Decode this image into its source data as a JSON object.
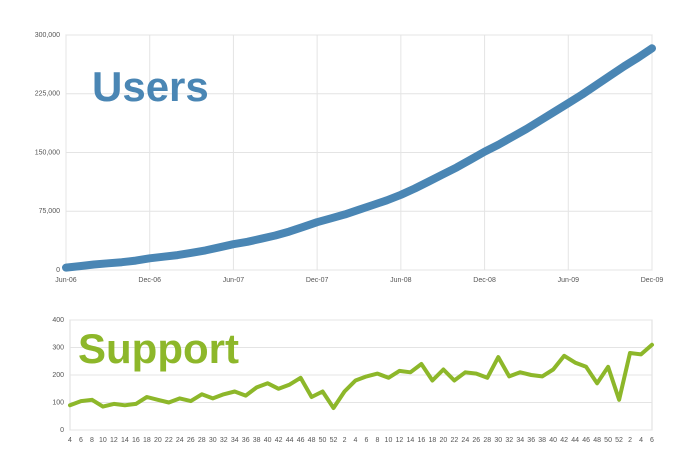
{
  "chart_data": [
    {
      "type": "line",
      "title": "Users",
      "color": "#4a86b4",
      "grid": true,
      "categories": [
        "Jun-06",
        null,
        null,
        null,
        null,
        null,
        "Dec-06",
        null,
        null,
        null,
        null,
        null,
        "Jun-07",
        null,
        null,
        null,
        null,
        null,
        "Dec-07",
        null,
        null,
        null,
        null,
        null,
        "Jun-08",
        null,
        null,
        null,
        null,
        null,
        "Dec-08",
        null,
        null,
        null,
        null,
        null,
        "Jun-09",
        null,
        null,
        null,
        null,
        null,
        "Dec-09"
      ],
      "values": [
        3000,
        5000,
        7000,
        8500,
        10000,
        12000,
        15000,
        17000,
        19000,
        22000,
        25000,
        29000,
        33000,
        36000,
        40000,
        44000,
        49000,
        55000,
        61000,
        66000,
        71000,
        77000,
        83000,
        89000,
        96000,
        104000,
        113000,
        122000,
        131000,
        141000,
        151000,
        160000,
        170000,
        180000,
        191000,
        202000,
        213000,
        224000,
        236000,
        248000,
        260000,
        271000,
        283000
      ],
      "ylim": [
        0,
        300000
      ],
      "yticks": [
        0,
        {
          "value": 75000,
          "label": "75,000"
        },
        {
          "value": 150000,
          "label": "150,000"
        },
        {
          "value": 225000,
          "label": "225,000"
        },
        {
          "value": 300000,
          "label": "300,000"
        }
      ]
    },
    {
      "type": "line",
      "title": "Support",
      "color": "#8db72a",
      "grid": true,
      "categories": [
        "4",
        "6",
        "8",
        "10",
        "12",
        "14",
        "16",
        "18",
        "20",
        "22",
        "24",
        "26",
        "28",
        "30",
        "32",
        "34",
        "36",
        "38",
        "40",
        "42",
        "44",
        "46",
        "48",
        "50",
        "52",
        "2",
        "4",
        "6",
        "8",
        "10",
        "12",
        "14",
        "16",
        "18",
        "20",
        "22",
        "24",
        "26",
        "28",
        "30",
        "32",
        "34",
        "36",
        "38",
        "40",
        "42",
        "44",
        "46",
        "48",
        "50",
        "52",
        "2",
        "4",
        "6"
      ],
      "values": [
        90,
        105,
        110,
        85,
        95,
        90,
        95,
        120,
        110,
        100,
        115,
        105,
        130,
        115,
        130,
        140,
        125,
        155,
        170,
        150,
        165,
        190,
        120,
        140,
        80,
        140,
        180,
        195,
        205,
        190,
        215,
        210,
        240,
        180,
        220,
        180,
        210,
        205,
        190,
        265,
        195,
        210,
        200,
        195,
        220,
        270,
        245,
        230,
        170,
        230,
        110,
        280,
        275,
        310
      ],
      "ylim": [
        0,
        400
      ],
      "yticks": [
        0,
        100,
        200,
        300,
        400
      ]
    }
  ]
}
